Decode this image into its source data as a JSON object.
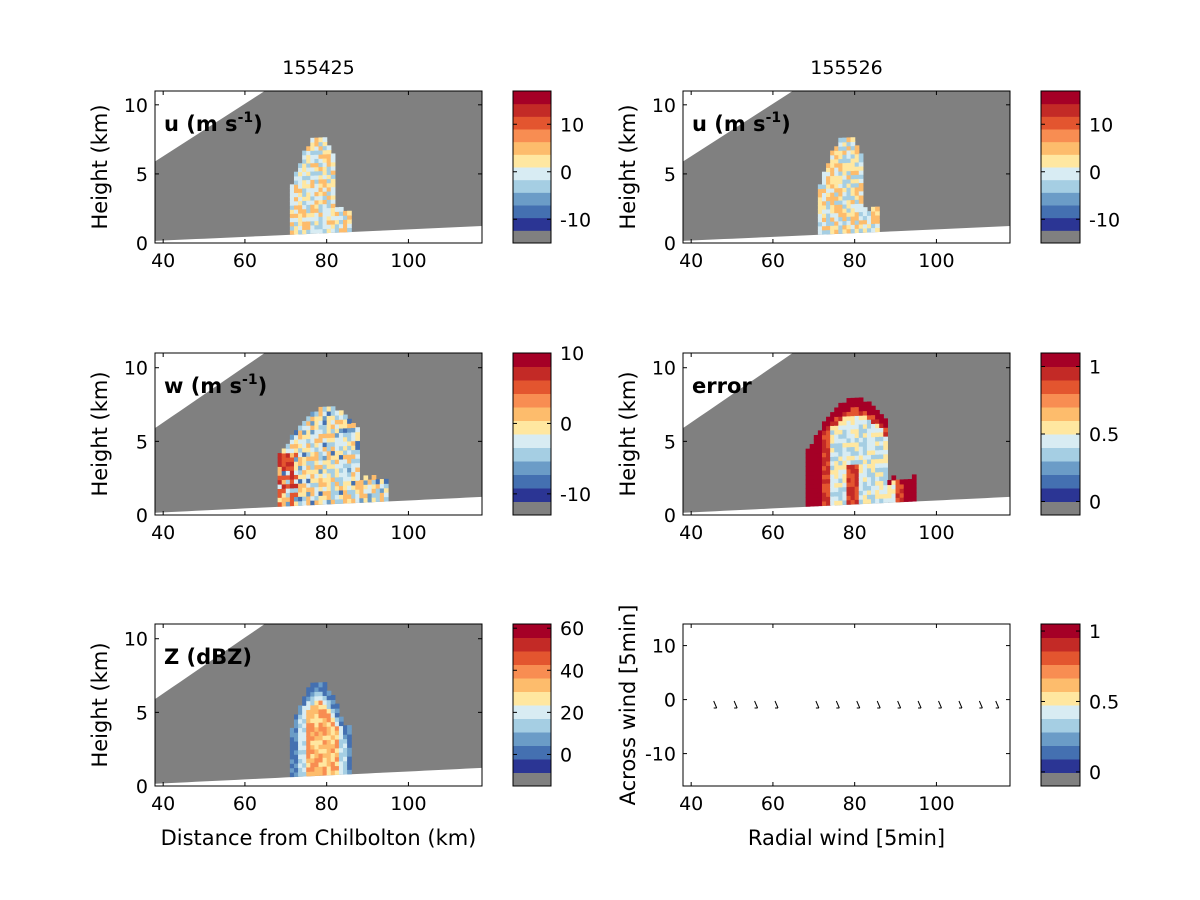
{
  "chart_data": [
    {
      "type": "heatmap",
      "title": "155425",
      "panel_label": "u (m s-1)",
      "label_main": "u (m s",
      "label_sup": "-1",
      "label_close": ")",
      "xlabel": "",
      "ylabel": "Height (km)",
      "xlim": [
        38,
        118
      ],
      "ylim": [
        0,
        11
      ],
      "xticks": [
        40,
        60,
        80,
        100
      ],
      "yticks": [
        0,
        5,
        10
      ],
      "colorbar": {
        "min": -15,
        "max": 17,
        "ticks": [
          -10,
          0,
          10
        ]
      },
      "feature": {
        "kind": "cell",
        "x_range": [
          71,
          86
        ],
        "top_km": 7.6
      }
    },
    {
      "type": "heatmap",
      "title": "155526",
      "panel_label": "u (m s-1)",
      "label_main": "u (m s",
      "label_sup": "-1",
      "label_close": ")",
      "xlabel": "",
      "ylabel": "Height (km)",
      "xlim": [
        38,
        118
      ],
      "ylim": [
        0,
        11
      ],
      "xticks": [
        40,
        60,
        80,
        100
      ],
      "yticks": [
        0,
        5,
        10
      ],
      "colorbar": {
        "min": -15,
        "max": 17,
        "ticks": [
          -10,
          0,
          10
        ]
      },
      "feature": {
        "kind": "cell",
        "x_range": [
          71,
          86
        ],
        "top_km": 7.6
      }
    },
    {
      "type": "heatmap",
      "title": "",
      "panel_label": "w (m s-1)",
      "label_main": "w (m s",
      "label_sup": "-1",
      "label_close": ")",
      "xlabel": "",
      "ylabel": "Height (km)",
      "xlim": [
        38,
        118
      ],
      "ylim": [
        0,
        11
      ],
      "xticks": [
        40,
        60,
        80,
        100
      ],
      "yticks": [
        0,
        5,
        10
      ],
      "colorbar": {
        "min": -13,
        "max": 10,
        "ticks": [
          -10,
          0,
          10
        ]
      },
      "feature": {
        "kind": "cell",
        "x_range": [
          68,
          95
        ],
        "top_km": 7.2
      }
    },
    {
      "type": "heatmap",
      "title": "",
      "panel_label": "error",
      "label_main": "error",
      "label_sup": "",
      "label_close": "",
      "xlabel": "",
      "ylabel": "Height (km)",
      "xlim": [
        38,
        118
      ],
      "ylim": [
        0,
        11
      ],
      "xticks": [
        40,
        60,
        80,
        100
      ],
      "yticks": [
        0,
        5,
        10
      ],
      "colorbar": {
        "min": -0.1,
        "max": 1.1,
        "ticks": [
          0,
          0.5,
          1
        ]
      },
      "feature": {
        "kind": "error",
        "x_range": [
          68,
          95
        ],
        "top_km": 7.8
      }
    },
    {
      "type": "heatmap",
      "title": "",
      "panel_label": "Z (dBZ)",
      "label_main": "Z (dBZ)",
      "label_sup": "",
      "label_close": "",
      "xlabel": "Distance from Chilbolton (km)",
      "ylabel": "Height (km)",
      "xlim": [
        38,
        118
      ],
      "ylim": [
        0,
        11
      ],
      "xticks": [
        40,
        60,
        80,
        100
      ],
      "yticks": [
        0,
        5,
        10
      ],
      "colorbar": {
        "min": -15,
        "max": 62,
        "ticks": [
          0,
          20,
          40,
          60
        ]
      },
      "feature": {
        "kind": "reflectivity",
        "x_range": [
          71,
          86
        ],
        "top_km": 7.0
      }
    },
    {
      "type": "scatter",
      "title": "",
      "panel_label": "",
      "xlabel": "Radial wind [5min]",
      "ylabel": "Across wind [5min]",
      "xlim": [
        38,
        118
      ],
      "ylim": [
        -16,
        14
      ],
      "xticks": [
        40,
        60,
        80,
        100
      ],
      "yticks": [
        -10,
        0,
        10
      ],
      "colorbar": {
        "min": -0.1,
        "max": 1.05,
        "ticks": [
          0,
          0.5,
          1
        ]
      },
      "x": [
        46,
        51,
        56,
        61,
        71,
        76,
        81,
        86,
        91,
        96,
        101,
        106,
        111,
        115
      ],
      "y": [
        -1,
        -1,
        -1,
        -1,
        -1,
        -1,
        -1,
        -1,
        -1,
        -1,
        -1,
        -1,
        -1,
        -1
      ]
    }
  ],
  "colormap": [
    "#2b3594",
    "#4470b1",
    "#6b9cc7",
    "#a5cee3",
    "#d8ecf3",
    "#ffe7a0",
    "#fdbc6c",
    "#f88d52",
    "#e3552f",
    "#c32a26",
    "#a50026"
  ],
  "mask_color": "#808080"
}
